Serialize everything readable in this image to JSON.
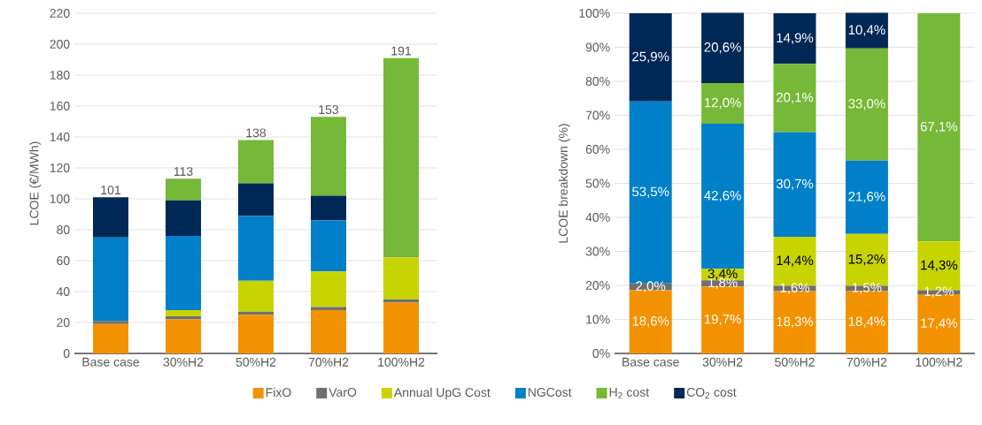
{
  "chart_data": [
    {
      "type": "bar",
      "stacked": true,
      "ylabel": "LCOE (€/MWh)",
      "categories": [
        "Base case",
        "30%H2",
        "50%H2",
        "70%H2",
        "100%H2"
      ],
      "ylim": [
        0,
        220
      ],
      "yticks": [
        0,
        20,
        40,
        60,
        80,
        100,
        120,
        140,
        160,
        180,
        200,
        220
      ],
      "grid": "y",
      "totals": [
        "101",
        "113",
        "138",
        "153",
        "191"
      ],
      "series": [
        {
          "color": "#f39200",
          "values": [
            19,
            22,
            25,
            28,
            33
          ]
        },
        {
          "color": "#6f6f6f",
          "values": [
            2,
            2,
            2,
            2,
            2
          ]
        },
        {
          "color": "#c8d400",
          "values": [
            0,
            4,
            20,
            23,
            27
          ]
        },
        {
          "color": "#0080c9",
          "values": [
            54,
            48,
            42,
            33,
            0
          ]
        },
        {
          "color": "#002856",
          "values": [
            26,
            23,
            21,
            16,
            0
          ]
        },
        {
          "color": "#76b837",
          "values": [
            0,
            14,
            28,
            51,
            129
          ]
        }
      ]
    },
    {
      "type": "bar",
      "stacked": true,
      "ylabel": "LCOE breakdown (%)",
      "categories": [
        "Base case",
        "30%H2",
        "50%H2",
        "70%H2",
        "100%H2"
      ],
      "ylim": [
        0,
        100
      ],
      "yticks": [
        {
          "value": 0,
          "label": "0%"
        },
        {
          "value": 10,
          "label": "10%"
        },
        {
          "value": 20,
          "label": "20%"
        },
        {
          "value": 30,
          "label": "30%"
        },
        {
          "value": 40,
          "label": "40%"
        },
        {
          "value": 50,
          "label": "50%"
        },
        {
          "value": 60,
          "label": "60%"
        },
        {
          "value": 70,
          "label": "70%"
        },
        {
          "value": 80,
          "label": "80%"
        },
        {
          "value": 90,
          "label": "90%"
        },
        {
          "value": 100,
          "label": "100%"
        }
      ],
      "grid": "y",
      "legend": "bottom",
      "series": [
        {
          "name": "FixO",
          "color": "#f39200",
          "values": [
            18.6,
            19.7,
            18.3,
            18.4,
            17.4
          ],
          "value_labels": [
            "18,6%",
            "19,7%",
            "18,3%",
            "18,4%",
            "17,4%"
          ]
        },
        {
          "name": "VarO",
          "color": "#6f6f6f",
          "values": [
            2.0,
            1.8,
            1.6,
            1.5,
            1.2
          ],
          "value_labels": [
            "2,0%",
            "1,8%",
            "1,6%",
            "1,5%",
            "1,2%"
          ]
        },
        {
          "name": "Annual UpG Cost",
          "color": "#c8d400",
          "values": [
            0,
            3.4,
            14.4,
            15.2,
            14.3
          ],
          "value_labels": [
            null,
            "3,4%",
            "14,4%",
            "15,2%",
            "14,3%"
          ]
        },
        {
          "name": "NGCost",
          "color": "#0080c9",
          "values": [
            53.5,
            42.6,
            30.7,
            21.6,
            0
          ],
          "value_labels": [
            "53,5%",
            "42,6%",
            "30,7%",
            "21,6%",
            null
          ]
        },
        {
          "name": "H$_{2}$ cost",
          "color": "#76b837",
          "values": [
            0,
            12.0,
            20.1,
            33.0,
            67.1
          ],
          "value_labels": [
            null,
            "12,0%",
            "20,1%",
            "33,0%",
            "67,1%"
          ]
        },
        {
          "name": "CO$_{2}$ cost",
          "color": "#002856",
          "values": [
            25.9,
            20.6,
            14.9,
            10.4,
            0
          ],
          "value_labels": [
            "25,9%",
            "20,6%",
            "14,9%",
            "10,4%",
            null
          ]
        }
      ]
    }
  ]
}
